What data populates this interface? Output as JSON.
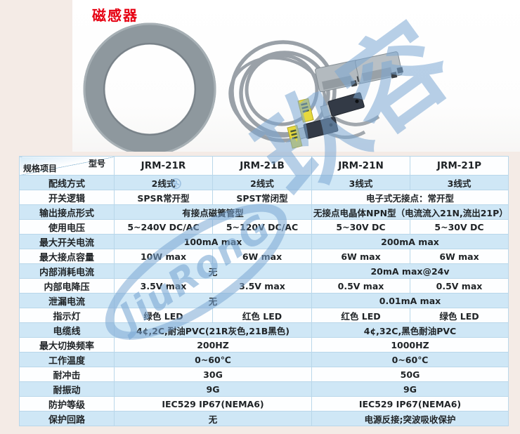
{
  "page": {
    "title": "磁感器"
  },
  "watermark": {
    "characters": "玖容",
    "logo_text": "JiuRonG",
    "registered_mark": "®"
  },
  "colors": {
    "accent_red": "#e60012",
    "row_blue": "#cfe7f6",
    "watermark_blue": "#7ca8d4",
    "background_pink": "#f4ebe6",
    "ring_gray": "#8e989e",
    "tag_yellow": "#e6d93d"
  },
  "photo": {
    "items": [
      "magnet-ring",
      "coiled-cable",
      "clamp-sensor",
      "clamp-sensor",
      "reed-sensor",
      "reed-sensor",
      "yellow-label",
      "yellow-label"
    ]
  },
  "table": {
    "corner_model_label": "型号",
    "corner_spec_label": "规格项目",
    "models": [
      "JRM-21R",
      "JRM-21B",
      "JRM-21N",
      "JRM-21P"
    ],
    "rows": [
      {
        "label": "配线方式",
        "cells": [
          {
            "span": 1,
            "text": "2线式"
          },
          {
            "span": 1,
            "text": "2线式"
          },
          {
            "span": 1,
            "text": "3线式"
          },
          {
            "span": 1,
            "text": "3线式"
          }
        ]
      },
      {
        "label": "开关逻辑",
        "cells": [
          {
            "span": 1,
            "text": "SPSR常开型"
          },
          {
            "span": 1,
            "text": "SPST常闭型"
          },
          {
            "span": 2,
            "text": "电子式无接点：常开型"
          }
        ]
      },
      {
        "label": "输出接点形式",
        "cells": [
          {
            "span": 2,
            "text": "有接点磁簧管型"
          },
          {
            "span": 2,
            "text": "无接点电晶体NPN型（电流流入21N,流出21P）"
          }
        ]
      },
      {
        "label": "使用电压",
        "cells": [
          {
            "span": 1,
            "text": "5~240V DC/AC"
          },
          {
            "span": 1,
            "text": "5~120V DC/AC"
          },
          {
            "span": 1,
            "text": "5~30V DC"
          },
          {
            "span": 1,
            "text": "5~30V DC"
          }
        ]
      },
      {
        "label": "最大开关电流",
        "cells": [
          {
            "span": 2,
            "text": "100mA  max"
          },
          {
            "span": 2,
            "text": "200mA  max"
          }
        ]
      },
      {
        "label": "最大接点容量",
        "cells": [
          {
            "span": 1,
            "text": "10W  max"
          },
          {
            "span": 1,
            "text": "6W  max"
          },
          {
            "span": 1,
            "text": "6W  max"
          },
          {
            "span": 1,
            "text": "6W  max"
          }
        ]
      },
      {
        "label": "内部消耗电流",
        "cells": [
          {
            "span": 2,
            "text": "无"
          },
          {
            "span": 2,
            "text": "20mA  max@24v"
          }
        ]
      },
      {
        "label": "内部电降压",
        "cells": [
          {
            "span": 1,
            "text": "3.5V  max"
          },
          {
            "span": 1,
            "text": "3.5V  max"
          },
          {
            "span": 1,
            "text": "0.5V  max"
          },
          {
            "span": 1,
            "text": "0.5V  max"
          }
        ]
      },
      {
        "label": "泄漏电流",
        "cells": [
          {
            "span": 2,
            "text": "无"
          },
          {
            "span": 2,
            "text": "0.01mA  max"
          }
        ]
      },
      {
        "label": "指示灯",
        "cells": [
          {
            "span": 1,
            "text": "绿色 LED"
          },
          {
            "span": 1,
            "text": "红色 LED"
          },
          {
            "span": 1,
            "text": "红色 LED"
          },
          {
            "span": 1,
            "text": "绿色 LED"
          }
        ]
      },
      {
        "label": "电缆线",
        "cells": [
          {
            "span": 2,
            "text": "4¢,2C,耐油PVC(21R灰色,21B黑色)"
          },
          {
            "span": 2,
            "text": "4¢,32C,黑色耐油PVC"
          }
        ]
      },
      {
        "label": "最大切换频率",
        "cells": [
          {
            "span": 2,
            "text": "200HZ"
          },
          {
            "span": 2,
            "text": "1000HZ"
          }
        ]
      },
      {
        "label": "工作温度",
        "cells": [
          {
            "span": 2,
            "text": "0~60℃"
          },
          {
            "span": 2,
            "text": "0~60℃"
          }
        ]
      },
      {
        "label": "耐冲击",
        "cells": [
          {
            "span": 2,
            "text": "30G"
          },
          {
            "span": 2,
            "text": "50G"
          }
        ]
      },
      {
        "label": "耐振动",
        "cells": [
          {
            "span": 2,
            "text": "9G"
          },
          {
            "span": 2,
            "text": "9G"
          }
        ]
      },
      {
        "label": "防护等级",
        "cells": [
          {
            "span": 2,
            "text": "IEC529  IP67(NEMA6)"
          },
          {
            "span": 2,
            "text": "IEC529  IP67(NEMA6)"
          }
        ]
      },
      {
        "label": "保护回路",
        "cells": [
          {
            "span": 2,
            "text": "无"
          },
          {
            "span": 2,
            "text": "电源反接;突波吸收保护"
          }
        ]
      }
    ]
  }
}
